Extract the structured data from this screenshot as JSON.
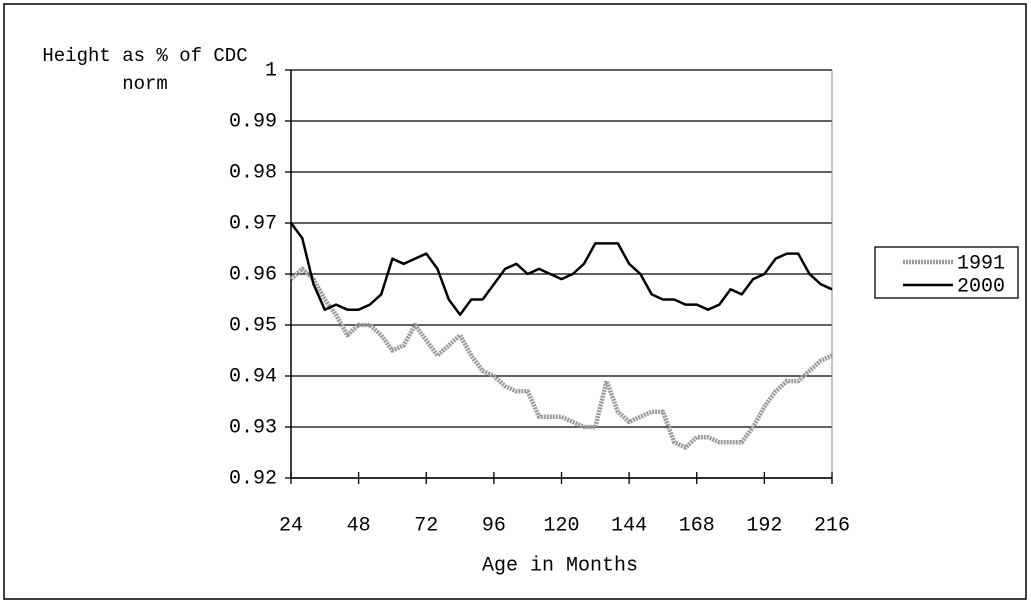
{
  "chart_data": {
    "type": "line",
    "ylabel": "Height as % of CDC norm",
    "xlabel": "Age in Months",
    "x": [
      24,
      28,
      32,
      36,
      40,
      44,
      48,
      52,
      56,
      60,
      64,
      68,
      72,
      76,
      80,
      84,
      88,
      92,
      96,
      100,
      104,
      108,
      112,
      116,
      120,
      124,
      128,
      132,
      136,
      140,
      144,
      148,
      152,
      156,
      160,
      164,
      168,
      172,
      176,
      180,
      184,
      188,
      192,
      196,
      200,
      204,
      208,
      212,
      216
    ],
    "series": [
      {
        "name": "1991",
        "color": "#999999",
        "values": [
          0.959,
          0.961,
          0.959,
          0.955,
          0.952,
          0.948,
          0.95,
          0.95,
          0.948,
          0.945,
          0.946,
          0.95,
          0.947,
          0.944,
          0.946,
          0.948,
          0.944,
          0.941,
          0.94,
          0.938,
          0.937,
          0.937,
          0.932,
          0.932,
          0.932,
          0.931,
          0.93,
          0.93,
          0.939,
          0.933,
          0.931,
          0.932,
          0.933,
          0.933,
          0.927,
          0.926,
          0.928,
          0.928,
          0.927,
          0.927,
          0.927,
          0.93,
          0.934,
          0.937,
          0.939,
          0.939,
          0.941,
          0.943,
          0.944
        ]
      },
      {
        "name": "2000",
        "color": "#000000",
        "values": [
          0.97,
          0.967,
          0.958,
          0.953,
          0.954,
          0.953,
          0.953,
          0.954,
          0.956,
          0.963,
          0.962,
          0.963,
          0.964,
          0.961,
          0.955,
          0.952,
          0.955,
          0.955,
          0.958,
          0.961,
          0.962,
          0.96,
          0.961,
          0.96,
          0.959,
          0.96,
          0.962,
          0.966,
          0.966,
          0.966,
          0.962,
          0.96,
          0.956,
          0.955,
          0.955,
          0.954,
          0.954,
          0.953,
          0.954,
          0.957,
          0.956,
          0.959,
          0.96,
          0.963,
          0.964,
          0.964,
          0.96,
          0.958,
          0.957
        ]
      }
    ],
    "xlim": [
      24,
      216
    ],
    "xticks": [
      24,
      48,
      72,
      96,
      120,
      144,
      168,
      192,
      216
    ],
    "ylim": [
      0.92,
      1
    ],
    "yticks": [
      0.92,
      0.93,
      0.94,
      0.95,
      0.96,
      0.97,
      0.98,
      0.99,
      1
    ],
    "grid": true,
    "legend": "right"
  }
}
